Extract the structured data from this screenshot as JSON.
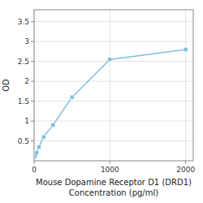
{
  "chart_data": {
    "type": "line",
    "x": [
      7.8125,
      15.625,
      31.25,
      62.5,
      125,
      250,
      500,
      1000,
      2000
    ],
    "values": [
      0.1,
      0.15,
      0.2,
      0.35,
      0.6,
      0.9,
      1.6,
      2.55,
      2.8
    ],
    "xlabel": "Mouse Dopamine Receptor D1 (DRD1)\nConcentration (pg/ml)",
    "ylabel": "OD",
    "xlim": [
      0,
      2100
    ],
    "xticks": [
      0,
      1000,
      2000
    ],
    "ylim": [
      0,
      3.8
    ],
    "yticks": [
      0.5,
      1,
      1.5,
      2,
      2.5,
      3,
      3.5
    ],
    "color": "#7fbfdf",
    "marker": "square",
    "grid": true
  }
}
